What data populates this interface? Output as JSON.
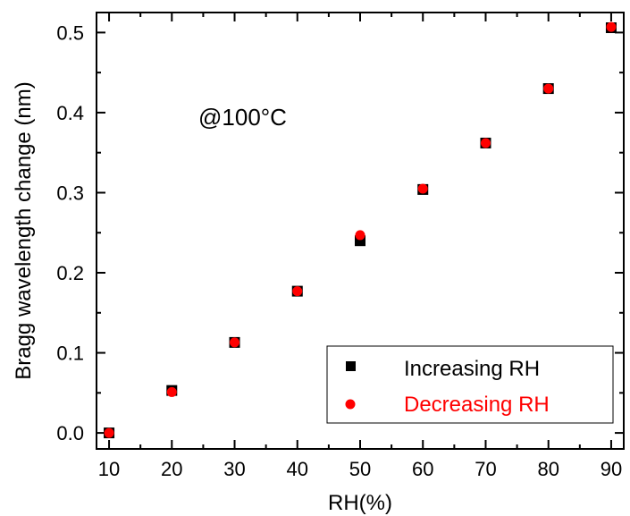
{
  "chart_data": {
    "type": "scatter",
    "xlabel": "RH(%)",
    "ylabel": "Bragg wavelength change (nm)",
    "xlim": [
      8,
      92
    ],
    "ylim": [
      -0.02,
      0.525
    ],
    "xticks": [
      10,
      20,
      30,
      40,
      50,
      60,
      70,
      80,
      90
    ],
    "xtick_labels": [
      "10",
      "20",
      "30",
      "40",
      "50",
      "60",
      "70",
      "80",
      "90"
    ],
    "yticks": [
      0.0,
      0.1,
      0.2,
      0.3,
      0.4,
      0.5
    ],
    "ytick_labels": [
      "0.0",
      "0.1",
      "0.2",
      "0.3",
      "0.4",
      "0.5"
    ],
    "annotation": "@100°C",
    "legend_position": "bottom-right",
    "grid": false,
    "series": [
      {
        "name": "Increasing RH",
        "marker": "square",
        "color": "#000000",
        "x": [
          10,
          20,
          30,
          40,
          50,
          60,
          70,
          80,
          90
        ],
        "y": [
          0.0,
          0.053,
          0.113,
          0.177,
          0.24,
          0.304,
          0.362,
          0.43,
          0.506
        ]
      },
      {
        "name": "Decreasing RH",
        "marker": "circle",
        "color": "#ff0000",
        "x": [
          10,
          20,
          30,
          40,
          50,
          60,
          70,
          80,
          90
        ],
        "y": [
          0.0,
          0.051,
          0.113,
          0.177,
          0.247,
          0.305,
          0.362,
          0.43,
          0.507
        ]
      }
    ]
  }
}
